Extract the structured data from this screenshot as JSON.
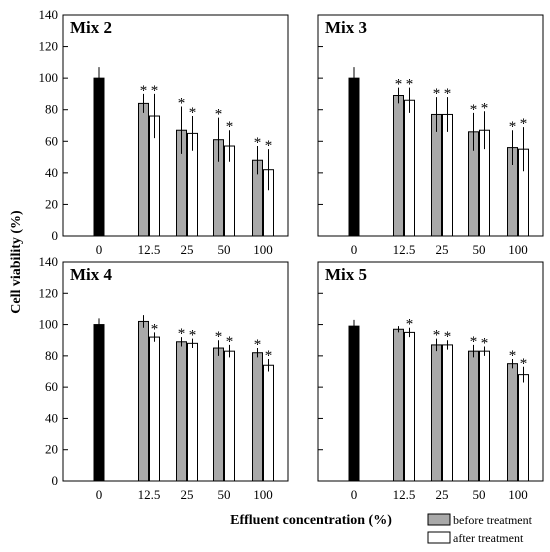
{
  "figure": {
    "ylabel": "Cell viability (%)",
    "xlabel": "Effluent concentration (%)",
    "legend": {
      "before": "before treatment",
      "after": "after treatment"
    },
    "colors": {
      "control": "#000000",
      "before": "#a9a9a9",
      "after": "#ffffff"
    }
  },
  "chart_data": [
    {
      "type": "bar",
      "title": "Mix 2",
      "categories": [
        "0",
        "12.5",
        "25",
        "50",
        "100"
      ],
      "ylim": [
        0,
        140
      ],
      "yticks": [
        "0",
        "20",
        "40",
        "60",
        "80",
        "100",
        "120",
        "140"
      ],
      "control": {
        "value": 100,
        "error": 7
      },
      "series": [
        {
          "name": "before treatment",
          "values": [
            null,
            84,
            67,
            61,
            48
          ],
          "errors": [
            null,
            6,
            15,
            14,
            9
          ],
          "significant": [
            false,
            true,
            true,
            true,
            true
          ]
        },
        {
          "name": "after treatment",
          "values": [
            null,
            76,
            65,
            57,
            42
          ],
          "errors": [
            null,
            14,
            11,
            10,
            13
          ],
          "significant": [
            false,
            true,
            true,
            true,
            true
          ]
        }
      ],
      "marker": "*"
    },
    {
      "type": "bar",
      "title": "Mix 3",
      "categories": [
        "0",
        "12.5",
        "25",
        "50",
        "100"
      ],
      "ylim": [
        0,
        140
      ],
      "yticks": [
        "0",
        "20",
        "40",
        "60",
        "80",
        "100",
        "120",
        "140"
      ],
      "control": {
        "value": 100,
        "error": 7
      },
      "series": [
        {
          "name": "before treatment",
          "values": [
            null,
            89,
            77,
            66,
            56
          ],
          "errors": [
            null,
            5,
            11,
            12,
            11
          ],
          "significant": [
            false,
            true,
            true,
            true,
            true
          ]
        },
        {
          "name": "after treatment",
          "values": [
            null,
            86,
            77,
            67,
            55
          ],
          "errors": [
            null,
            8,
            11,
            12,
            14
          ],
          "significant": [
            false,
            true,
            true,
            true,
            true
          ]
        }
      ],
      "marker": "*"
    },
    {
      "type": "bar",
      "title": "Mix 4",
      "categories": [
        "0",
        "12.5",
        "25",
        "50",
        "100"
      ],
      "ylim": [
        0,
        140
      ],
      "yticks": [
        "0",
        "20",
        "40",
        "60",
        "80",
        "100",
        "120",
        "140"
      ],
      "control": {
        "value": 100,
        "error": 4
      },
      "series": [
        {
          "name": "before treatment",
          "values": [
            null,
            102,
            89,
            85,
            82
          ],
          "errors": [
            null,
            4,
            3,
            5,
            3
          ],
          "significant": [
            false,
            false,
            true,
            true,
            true
          ]
        },
        {
          "name": "after treatment",
          "values": [
            null,
            92,
            88,
            83,
            74
          ],
          "errors": [
            null,
            3,
            3,
            4,
            4
          ],
          "significant": [
            false,
            true,
            true,
            true,
            true
          ]
        }
      ],
      "marker": "*"
    },
    {
      "type": "bar",
      "title": "Mix 5",
      "categories": [
        "0",
        "12.5",
        "25",
        "50",
        "100"
      ],
      "ylim": [
        0,
        140
      ],
      "yticks": [
        "0",
        "20",
        "40",
        "60",
        "80",
        "100",
        "120",
        "140"
      ],
      "control": {
        "value": 99,
        "error": 4
      },
      "series": [
        {
          "name": "before treatment",
          "values": [
            null,
            97,
            87,
            83,
            75
          ],
          "errors": [
            null,
            2,
            4,
            4,
            3
          ],
          "significant": [
            false,
            false,
            true,
            true,
            true
          ]
        },
        {
          "name": "after treatment",
          "values": [
            null,
            95,
            87,
            83,
            68
          ],
          "errors": [
            null,
            3,
            3,
            3,
            5
          ],
          "significant": [
            false,
            true,
            true,
            true,
            true
          ]
        }
      ],
      "marker": "*"
    }
  ]
}
